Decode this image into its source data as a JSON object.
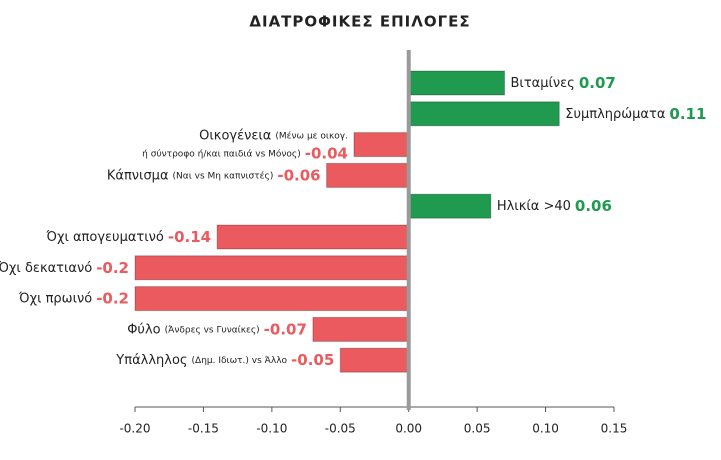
{
  "chart_data": {
    "type": "hbar",
    "title": "ΔΙΑΤΡΟΦΙΚΕΣ ΕΠΙΛΟΓΕΣ",
    "categories": [
      "Βιταμίνες",
      "Συμπληρώματα",
      "Οικογένεια",
      "Κάπνισμα",
      "Ηλικία >40",
      "Όχι απογευματινό",
      "Όχι δεκατιανό",
      "Όχι πρωινό",
      "Φύλο",
      "Υπάλληλος"
    ],
    "category_notes": [
      null,
      null,
      [
        "(Μένω με οικογ.",
        "ή σύντροφο ή/και παιδιά vs Μόνος)"
      ],
      [
        "(Ναι vs Μη καπνιστές)"
      ],
      null,
      null,
      null,
      null,
      [
        "(Άνδρες vs Γυναίκες)"
      ],
      [
        "(Δημ. Ιδιωτ.) vs Άλλο"
      ]
    ],
    "values": [
      0.07,
      0.11,
      -0.04,
      -0.06,
      0.06,
      -0.14,
      -0.2,
      -0.2,
      -0.07,
      -0.05
    ],
    "positive_color": "#1f9a4f",
    "negative_color": "#ea5a5e",
    "xlim": [
      -0.2,
      0.15
    ],
    "xticks": [
      {
        "value": -0.2,
        "label": "-0.20"
      },
      -0.15,
      {
        "value": -0.1,
        "label": "-0.10"
      },
      -0.05,
      {
        "value": 0,
        "label": "0.00"
      },
      0.05,
      {
        "value": 0.1,
        "label": "0.10"
      },
      0.15
    ]
  }
}
